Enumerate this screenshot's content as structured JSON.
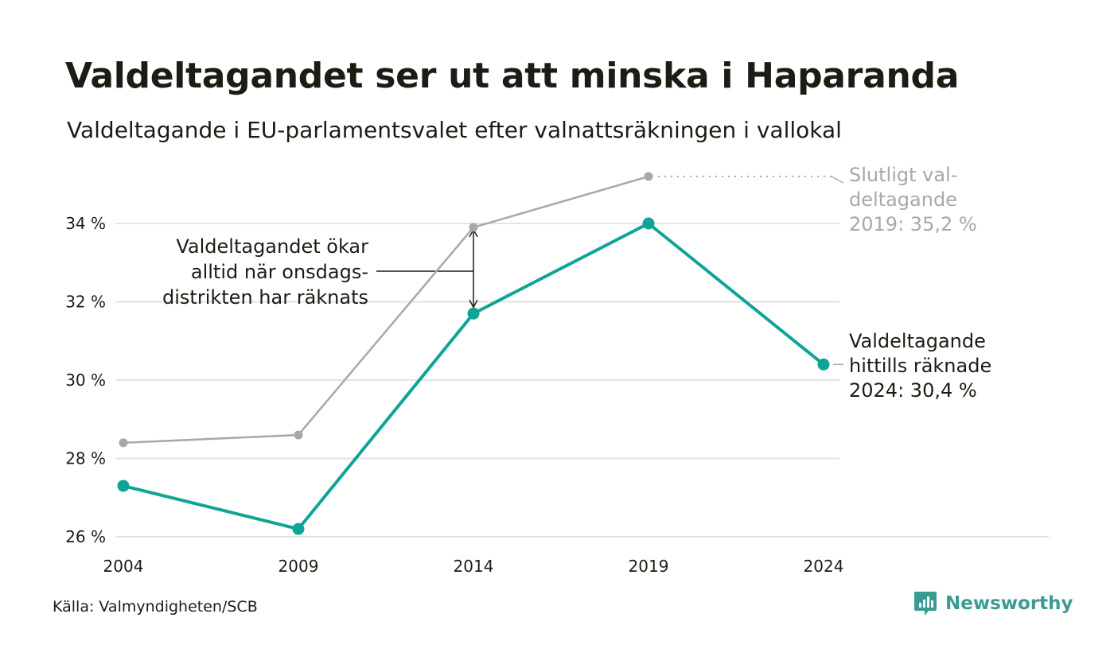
{
  "title": "Valdeltagandet ser ut att minska i Haparanda",
  "subtitle": "Valdeltagande i EU-parlamentsvalet efter valnattsräkningen i vallokal",
  "source": "Källa: Valmyndigheten/SCB",
  "brand": "Newsworthy",
  "colors": {
    "valnatt": "#10a497",
    "slutligt": "#a8a8a8",
    "grid": "#e3e3e3",
    "text": "#1c1c14"
  },
  "chart_data": {
    "type": "line",
    "title": "Valdeltagandet ser ut att minska i Haparanda",
    "subtitle": "Valdeltagande i EU-parlamentsvalet efter valnattsräkningen i vallokal",
    "x": [
      "2004",
      "2009",
      "2014",
      "2019",
      "2024"
    ],
    "ylim": [
      26,
      35.2
    ],
    "yticks": [
      26,
      28,
      30,
      32,
      34
    ],
    "ytick_labels": [
      "26 %",
      "28 %",
      "30 %",
      "32 %",
      "34 %"
    ],
    "grid": true,
    "series": [
      {
        "values": [
          27.3,
          26.2,
          31.7,
          34.0,
          30.4
        ],
        "color": "#10a497"
      },
      {
        "values": [
          28.4,
          28.6,
          33.9,
          35.2,
          null
        ],
        "color": "#a8a8a8"
      }
    ],
    "annotations": {
      "onsdag": [
        "Valdeltagandet ökar",
        "alltid när onsdags-",
        "distrikten har räknats"
      ],
      "slutligt": [
        "Slutligt val-",
        "deltagande",
        "2019: 35,2 %"
      ],
      "hittills": [
        "Valdeltagande",
        "hittills räknade",
        "2024: 30,4 %"
      ]
    }
  }
}
